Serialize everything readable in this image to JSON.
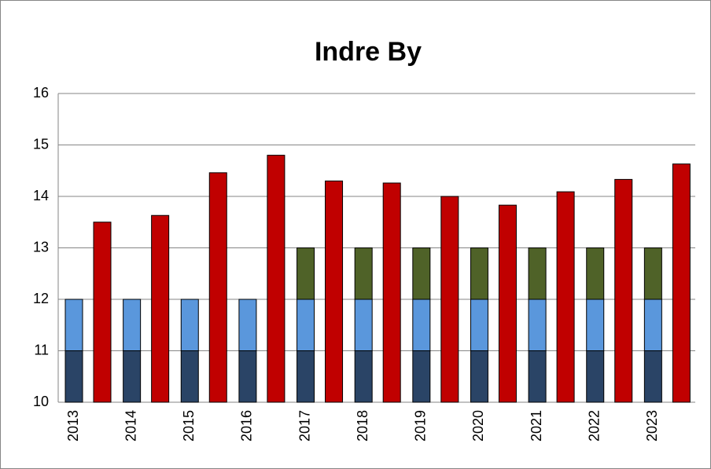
{
  "chart_data": {
    "type": "bar",
    "title": "Indre By",
    "categories": [
      "2013",
      "2014",
      "2015",
      "2016",
      "2017",
      "2018",
      "2019",
      "2020",
      "2021",
      "2022",
      "2023"
    ],
    "series": [
      {
        "color": "#2a4466",
        "stacked": true,
        "values": [
          11,
          11,
          11,
          11,
          11,
          11,
          11,
          11,
          11,
          11,
          11
        ]
      },
      {
        "color": "#5a97dc",
        "stacked": true,
        "values": [
          1,
          1,
          1,
          1,
          1,
          1,
          1,
          1,
          1,
          1,
          1
        ]
      },
      {
        "color": "#4f6228",
        "stacked": true,
        "values": [
          null,
          null,
          null,
          null,
          1,
          1,
          1,
          1,
          1,
          1,
          1
        ]
      },
      {
        "color": "#c00000",
        "stacked": false,
        "values": [
          13.5,
          13.63,
          14.46,
          14.8,
          14.3,
          14.26,
          14.0,
          13.83,
          14.09,
          14.33,
          14.63
        ]
      }
    ],
    "ylim": [
      10,
      16
    ],
    "yticks": [
      10,
      11,
      12,
      13,
      14,
      15,
      16
    ],
    "grid": true
  }
}
